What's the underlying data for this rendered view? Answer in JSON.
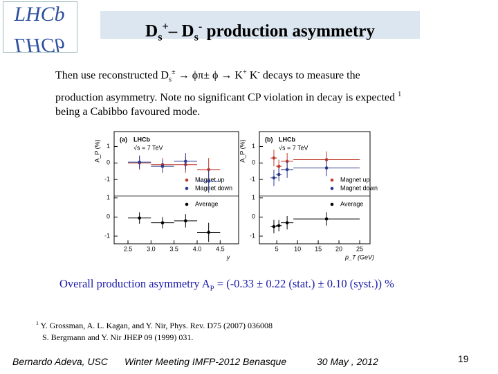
{
  "logo": "LHCb",
  "title": [
    {
      "t": "D"
    },
    {
      "t": "s",
      "pos": "sub"
    },
    {
      "t": "+",
      "pos": "sup"
    },
    {
      "t": "– D"
    },
    {
      "t": "s",
      "pos": "sub"
    },
    {
      "t": "-",
      "pos": "sup"
    },
    {
      "t": " production asymmetry"
    }
  ],
  "body": [
    [
      {
        "t": "Then use reconstructed D"
      },
      {
        "t": "s",
        "pos": "sub"
      },
      {
        "t": "±",
        "pos": "sup"
      },
      {
        "t": " → ϕπ±    ϕ → K"
      },
      {
        "t": "+",
        "pos": "sup"
      },
      {
        "t": " K"
      },
      {
        "t": "-",
        "pos": "sup"
      },
      {
        "t": " decays to measure the"
      }
    ],
    [
      {
        "t": "production asymmetry. Note no significant CP violation in decay is expected "
      },
      {
        "t": "1",
        "pos": "sup"
      }
    ],
    [
      {
        "t": "being a Cabibbo favoured mode."
      }
    ]
  ],
  "figures": [
    {
      "tag": "(a)",
      "brand": "LHCb",
      "energy": "√s = 7 TeV",
      "ylabel": "A_P (%)",
      "xlabel": "y",
      "xlim": [
        2.2,
        4.9
      ],
      "xticks": [
        2.5,
        {
          "value": 3.0,
          "label": "3.0"
        },
        3.5,
        {
          "value": 4.0,
          "label": "4.0"
        },
        4.5
      ],
      "top_ylim": [
        -2,
        1.9
      ],
      "bottom_ylim": [
        -1.4,
        1.1
      ],
      "yticks": [
        -1,
        0,
        1
      ],
      "series": [
        {
          "name": "Magnet up",
          "color": "#c0392b",
          "panel": "top",
          "x": [
            2.75,
            3.25,
            3.75,
            4.25
          ],
          "xerr": [
            0.25,
            0.25,
            0.25,
            0.25
          ],
          "y": [
            0.0,
            -0.1,
            -0.1,
            -0.4
          ],
          "err": [
            0.4,
            0.4,
            0.5,
            0.7
          ]
        },
        {
          "name": "Magnet down",
          "color": "#2b3a8f",
          "panel": "top",
          "x": [
            2.75,
            3.25,
            3.75,
            4.25
          ],
          "xerr": [
            0.25,
            0.25,
            0.25,
            0.25
          ],
          "y": [
            0.05,
            -0.2,
            0.1,
            -1.1
          ],
          "err": [
            0.4,
            0.4,
            0.5,
            0.7
          ]
        },
        {
          "name": "Average",
          "color": "#000000",
          "panel": "bottom",
          "x": [
            2.75,
            3.25,
            3.75,
            4.25
          ],
          "xerr": [
            0.25,
            0.25,
            0.25,
            0.25
          ],
          "y": [
            -0.05,
            -0.3,
            -0.2,
            -0.8
          ],
          "err": [
            0.3,
            0.3,
            0.35,
            0.5
          ]
        }
      ]
    },
    {
      "tag": "(b)",
      "brand": "LHCb",
      "energy": "√s = 7 TeV",
      "ylabel": "A_P (%)",
      "xlabel": "p_T (GeV)",
      "xlim": [
        0.8,
        27.5
      ],
      "xticks": [
        5,
        10,
        15,
        20,
        25
      ],
      "top_ylim": [
        -2,
        1.9
      ],
      "bottom_ylim": [
        -1.4,
        1.1
      ],
      "yticks": [
        -1,
        0,
        1
      ],
      "series": [
        {
          "name": "Magnet up",
          "color": "#c0392b",
          "panel": "top",
          "x": [
            4.3,
            5.5,
            7.5,
            17
          ],
          "xerr": [
            0.8,
            0.7,
            1.5,
            8
          ],
          "y": [
            0.3,
            -0.2,
            0.1,
            0.2
          ],
          "err": [
            0.5,
            0.4,
            0.5,
            0.5
          ]
        },
        {
          "name": "Magnet down",
          "color": "#2b3a8f",
          "panel": "top",
          "x": [
            4.3,
            5.5,
            7.5,
            17
          ],
          "xerr": [
            0.8,
            0.7,
            1.5,
            8
          ],
          "y": [
            -0.9,
            -0.7,
            -0.4,
            -0.3
          ],
          "err": [
            0.5,
            0.4,
            0.5,
            0.5
          ]
        },
        {
          "name": "Average",
          "color": "#000000",
          "panel": "bottom",
          "x": [
            4.3,
            5.5,
            7.5,
            17
          ],
          "xerr": [
            0.8,
            0.7,
            1.5,
            8
          ],
          "y": [
            -0.5,
            -0.45,
            -0.3,
            -0.1
          ],
          "err": [
            0.35,
            0.3,
            0.35,
            0.35
          ]
        }
      ]
    }
  ],
  "conclusion": [
    {
      "t": "Overall production asymmetry A"
    },
    {
      "t": "P",
      "pos": "sub"
    },
    {
      "t": " = (-0.33 ± 0.22 (stat.) ± 0.10 (syst.)) %"
    }
  ],
  "footnote": {
    "mark": "1",
    "lines": [
      "Y. Grossman, A. L. Kagan, and Y. Nir, Phys. Rev. D75 (2007) 036008",
      "S. Bergmann and Y. Nir JHEP 09 (1999) 031."
    ]
  },
  "footer": {
    "author": "Bernardo Adeva, USC",
    "event": "Winter Meeting IMFP-2012  Benasque",
    "date": "30 May , 2012",
    "page": "19"
  }
}
